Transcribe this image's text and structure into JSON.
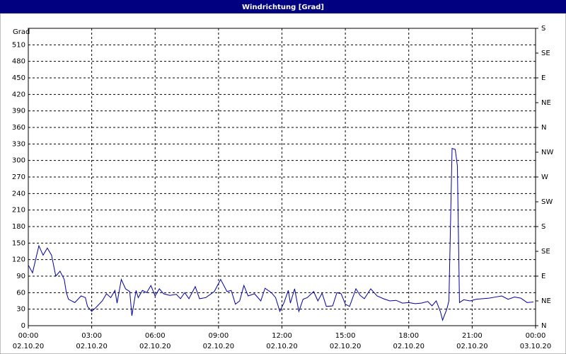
{
  "chart_data": {
    "type": "line",
    "title": "Windrichtung [Grad]",
    "y_label": "Grad",
    "color": "#0000a0",
    "grid": true,
    "x": [
      0,
      0.2,
      0.5,
      0.7,
      0.9,
      1.1,
      1.3,
      1.5,
      1.7,
      1.8,
      1.9,
      2.2,
      2.5,
      2.7,
      2.8,
      3.0,
      3.2,
      3.5,
      3.7,
      3.9,
      4.1,
      4.2,
      4.4,
      4.6,
      4.8,
      4.9,
      5.1,
      5.2,
      5.4,
      5.6,
      5.8,
      6.0,
      6.2,
      6.4,
      6.7,
      7.0,
      7.2,
      7.4,
      7.6,
      7.9,
      8.1,
      8.4,
      8.8,
      9.1,
      9.4,
      9.6,
      9.8,
      10.0,
      10.2,
      10.4,
      10.7,
      11.0,
      11.2,
      11.5,
      11.7,
      11.9,
      12.1,
      12.3,
      12.4,
      12.6,
      12.8,
      13.0,
      13.2,
      13.5,
      13.7,
      13.9,
      14.1,
      14.4,
      14.6,
      14.8,
      15.0,
      15.2,
      15.5,
      15.7,
      15.9,
      16.2,
      16.5,
      16.8,
      17.1,
      17.4,
      17.7,
      18.0,
      18.3,
      18.6,
      18.9,
      19.1,
      19.3,
      19.5,
      19.6,
      19.8,
      19.9,
      20.05,
      20.2,
      20.3,
      20.4,
      20.6,
      20.9,
      21.2,
      21.5,
      21.8,
      22.1,
      22.4,
      22.7,
      23.0,
      23.3,
      23.6,
      23.9
    ],
    "values": [
      110,
      96,
      145,
      128,
      141,
      128,
      90,
      99,
      84,
      60,
      48,
      42,
      54,
      51,
      35,
      26,
      33,
      45,
      58,
      51,
      64,
      41,
      84,
      67,
      62,
      18,
      64,
      51,
      64,
      60,
      73,
      54,
      67,
      58,
      55,
      57,
      49,
      60,
      49,
      71,
      49,
      51,
      62,
      84,
      62,
      64,
      39,
      45,
      73,
      54,
      58,
      45,
      68,
      60,
      51,
      26,
      42,
      64,
      41,
      67,
      26,
      48,
      51,
      62,
      45,
      59,
      35,
      36,
      60,
      58,
      39,
      35,
      67,
      55,
      49,
      67,
      54,
      49,
      45,
      46,
      41,
      42,
      40,
      41,
      44,
      36,
      45,
      25,
      10,
      30,
      45,
      322,
      320,
      290,
      42,
      47,
      45,
      48,
      49,
      50,
      52,
      54,
      48,
      52,
      50,
      42,
      43
    ],
    "xlim": [
      0,
      24
    ],
    "xticks": [
      {
        "value": 0,
        "label": "00:00",
        "date": "02.10.20"
      },
      {
        "value": 3,
        "label": "03:00",
        "date": "02.10.20"
      },
      {
        "value": 6,
        "label": "06:00",
        "date": "02.10.20"
      },
      {
        "value": 9,
        "label": "09:00",
        "date": "02.10.20"
      },
      {
        "value": 12,
        "label": "12:00",
        "date": "02.10.20"
      },
      {
        "value": 15,
        "label": "15:00",
        "date": "02.10.20"
      },
      {
        "value": 18,
        "label": "18:00",
        "date": "02.10.20"
      },
      {
        "value": 21,
        "label": "21:00",
        "date": "02.10.20"
      },
      {
        "value": 24,
        "label": "00:00",
        "date": "03.10.20"
      }
    ],
    "ylim": [
      0,
      540
    ],
    "yticks": [
      0,
      30,
      60,
      90,
      120,
      150,
      180,
      210,
      240,
      270,
      300,
      330,
      360,
      390,
      420,
      450,
      480,
      510
    ],
    "y2lim": [
      0,
      540
    ],
    "y2ticks": [
      {
        "value": 0,
        "label": "N"
      },
      {
        "value": 45,
        "label": "NE"
      },
      {
        "value": 90,
        "label": "E"
      },
      {
        "value": 135,
        "label": "SE"
      },
      {
        "value": 180,
        "label": "S"
      },
      {
        "value": 225,
        "label": "SW"
      },
      {
        "value": 270,
        "label": "W"
      },
      {
        "value": 315,
        "label": "NW"
      },
      {
        "value": 360,
        "label": "N"
      },
      {
        "value": 405,
        "label": "NE"
      },
      {
        "value": 450,
        "label": "E"
      },
      {
        "value": 495,
        "label": "SE"
      },
      {
        "value": 540,
        "label": "S"
      }
    ]
  }
}
